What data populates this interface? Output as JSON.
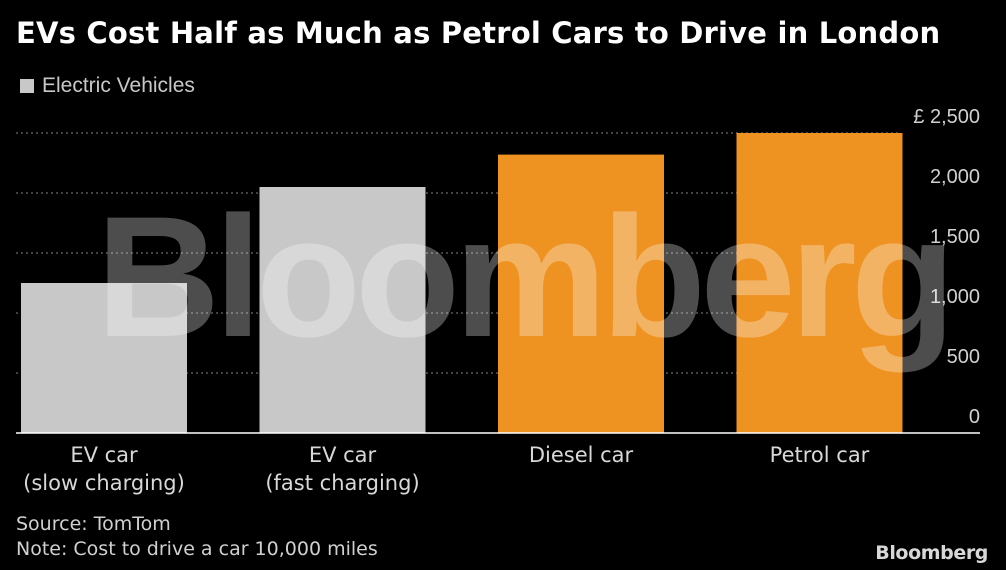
{
  "title": "EVs Cost Half as Much as Petrol Cars to Drive in London",
  "legend": {
    "label": "Electric Vehicles",
    "color": "#c8c8c8"
  },
  "watermark": "Bloomberg",
  "source": "Source: TomTom",
  "note": "Note: Cost to drive a car 10,000 miles",
  "brand": "Bloomberg",
  "colors": {
    "ev": "#c8c8c8",
    "ice": "#ee9222",
    "grid": "#6a6a6a",
    "axis": "#ffffff"
  },
  "chart_data": {
    "type": "bar",
    "categories": [
      [
        "EV car",
        "(slow charging)"
      ],
      [
        "EV car",
        "(fast charging)"
      ],
      [
        "Diesel car"
      ],
      [
        "Petrol car"
      ]
    ],
    "values": [
      1250,
      2050,
      2320,
      2500
    ],
    "bar_groups": [
      "ev",
      "ev",
      "ice",
      "ice"
    ],
    "legend": [
      "Electric Vehicles"
    ],
    "ylim": [
      0,
      2500
    ],
    "yticks": [
      0,
      500,
      1000,
      1500,
      2000,
      2500
    ],
    "ytick_labels": [
      "0",
      "500",
      "1,000",
      "1,500",
      "2,000",
      "£ 2,500"
    ],
    "grid": true,
    "legend_position": "top-left"
  }
}
